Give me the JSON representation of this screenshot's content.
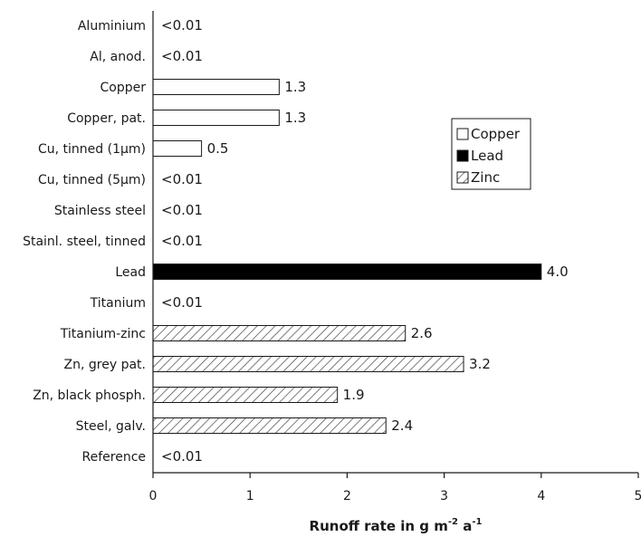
{
  "chart_data": {
    "type": "bar",
    "orientation": "horizontal",
    "title": "",
    "xlabel_parts": [
      "Runoff rate in g m",
      "-2",
      " a",
      "-1"
    ],
    "xlim": [
      0,
      5
    ],
    "xticks": [
      "0",
      "1",
      "2",
      "3",
      "4",
      "5"
    ],
    "legend_position": "right, upper-middle",
    "series": [
      {
        "name": "Copper",
        "fill": "white",
        "color": "#ffffff"
      },
      {
        "name": "Lead",
        "fill": "solid",
        "color": "#000000"
      },
      {
        "name": "Zinc",
        "fill": "hatched",
        "color": "#ffffff"
      }
    ],
    "bars": [
      {
        "category": "Aluminium",
        "value": 0,
        "label": "<0.01",
        "series": null
      },
      {
        "category": "Al, anod.",
        "value": 0,
        "label": "<0.01",
        "series": null
      },
      {
        "category": "Copper",
        "value": 1.3,
        "label": "1.3",
        "series": "Copper"
      },
      {
        "category": "Copper, pat.",
        "value": 1.3,
        "label": "1.3",
        "series": "Copper"
      },
      {
        "category": "Cu, tinned (1µm)",
        "value": 0.5,
        "label": "0.5",
        "series": "Copper"
      },
      {
        "category": "Cu, tinned (5µm)",
        "value": 0,
        "label": "<0.01",
        "series": null
      },
      {
        "category": "Stainless steel",
        "value": 0,
        "label": "<0.01",
        "series": null
      },
      {
        "category": "Stainl. steel, tinned",
        "value": 0,
        "label": "<0.01",
        "series": null
      },
      {
        "category": "Lead",
        "value": 4.0,
        "label": "4.0",
        "series": "Lead"
      },
      {
        "category": "Titanium",
        "value": 0,
        "label": "<0.01",
        "series": null
      },
      {
        "category": "Titanium-zinc",
        "value": 2.6,
        "label": "2.6",
        "series": "Zinc"
      },
      {
        "category": "Zn, grey pat.",
        "value": 3.2,
        "label": "3.2",
        "series": "Zinc"
      },
      {
        "category": "Zn, black phosph.",
        "value": 1.9,
        "label": "1.9",
        "series": "Zinc"
      },
      {
        "category": "Steel, galv.",
        "value": 2.4,
        "label": "2.4",
        "series": "Zinc"
      },
      {
        "category": "Reference",
        "value": 0,
        "label": "<0.01",
        "series": null
      }
    ]
  }
}
